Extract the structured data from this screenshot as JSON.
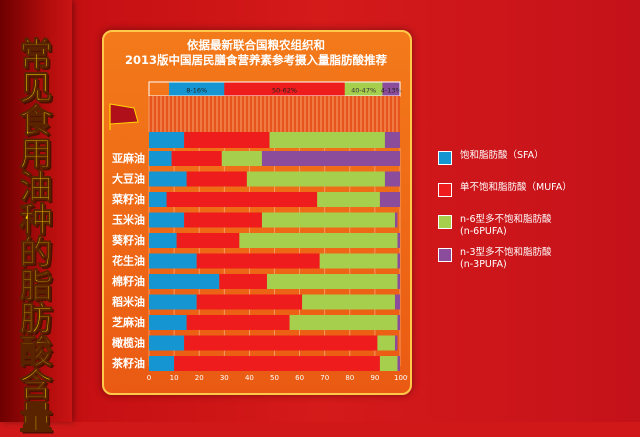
{
  "side_title": "常见食用油种的脂肪酸含量",
  "colors": {
    "SFA": "#1596d2",
    "MUFA": "#ee1c1c",
    "n6PUFA": "#a6cf4e",
    "n3PUFA": "#8c4c9c"
  },
  "chart_data": {
    "type": "bar",
    "orientation": "horizontal",
    "stacked": true,
    "title_lines": [
      "依据最新联合国粮农组织和",
      "2013版中国居民膳食营养素参考摄入量脂肪酸推荐"
    ],
    "reference_bar": {
      "labels": [
        "8-16%",
        "50-62%",
        "40-47%",
        "4-13%"
      ],
      "boundaries": [
        8,
        30,
        78,
        93,
        100
      ]
    },
    "categories": [
      "亚麻油",
      "大豆油",
      "菜籽油",
      "玉米油",
      "葵籽油",
      "花生油",
      "棉籽油",
      "稻米油",
      "芝麻油",
      "橄榄油",
      "茶籽油"
    ],
    "top_bar_values": [
      14,
      34,
      46,
      6
    ],
    "series": [
      {
        "key": "SFA",
        "name": "饱和脂肪酸（SFA）",
        "values": [
          9,
          15,
          7,
          14,
          11,
          19,
          28,
          19,
          15,
          14,
          10
        ]
      },
      {
        "key": "MUFA",
        "name": "单不饱和脂肪酸（MUFA）",
        "values": [
          20,
          24,
          60,
          31,
          25,
          49,
          19,
          42,
          41,
          77,
          82
        ]
      },
      {
        "key": "n6PUFA",
        "name": "n-6型多不饱和脂肪酸\n(n-6PUFA)",
        "values": [
          16,
          55,
          25,
          53,
          63,
          31,
          52,
          37,
          43,
          7,
          7
        ]
      },
      {
        "key": "n3PUFA",
        "name": "n-3型多不饱和脂肪酸\n(n-3PUFA)",
        "values": [
          55,
          6,
          8,
          1,
          1,
          1,
          1,
          2,
          1,
          1,
          1
        ]
      }
    ],
    "xticks": [
      "0",
      "10",
      "20",
      "30",
      "40",
      "50",
      "60",
      "70",
      "80",
      "90",
      "100%"
    ],
    "xlim": [
      0,
      100
    ],
    "grid": true,
    "legend_position": "right"
  }
}
